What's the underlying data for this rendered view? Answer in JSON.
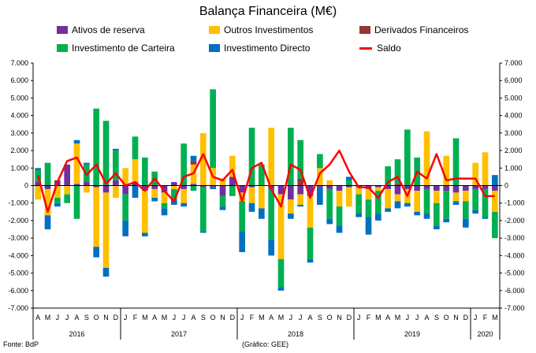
{
  "chart_data": {
    "type": "bar",
    "title": "Balança Financeira (M€)",
    "xlabel": "",
    "ylabel": "",
    "ylim": [
      -7000,
      7000
    ],
    "y_ticks": [
      "-7.000",
      "-6.000",
      "-5.000",
      "-4.000",
      "-3.000",
      "-2.000",
      "-1.000",
      "0",
      "1.000",
      "2.000",
      "3.000",
      "4.000",
      "5.000",
      "6.000",
      "7.000"
    ],
    "stacked": true,
    "grid": false,
    "legend_position": "top",
    "months": [
      "A",
      "M",
      "J",
      "J",
      "A",
      "S",
      "O",
      "N",
      "D",
      "J",
      "F",
      "M",
      "A",
      "M",
      "J",
      "J",
      "A",
      "S",
      "O",
      "N",
      "D",
      "J",
      "F",
      "M",
      "A",
      "M",
      "J",
      "J",
      "A",
      "S",
      "O",
      "N",
      "D",
      "J",
      "F",
      "M",
      "A",
      "M",
      "J",
      "J",
      "A",
      "S",
      "O",
      "N",
      "D",
      "J",
      "F",
      "M"
    ],
    "years": [
      {
        "label": "2016",
        "start": 0,
        "count": 9
      },
      {
        "label": "2017",
        "start": 9,
        "count": 12
      },
      {
        "label": "2018",
        "start": 21,
        "count": 12
      },
      {
        "label": "2019",
        "start": 33,
        "count": 12
      },
      {
        "label": "2020",
        "start": 45,
        "count": 3
      }
    ],
    "series": [
      {
        "name": "Ativos de reserva",
        "color": "#7030a0",
        "values": [
          200,
          -200,
          300,
          1200,
          100,
          200,
          -100,
          -400,
          300,
          -500,
          200,
          -300,
          -200,
          -400,
          200,
          -200,
          100,
          -100,
          -100,
          -600,
          500,
          -400,
          -100,
          0,
          -200,
          -500,
          -800,
          -500,
          -600,
          -100,
          -200,
          -300,
          -100,
          -100,
          -200,
          -100,
          -200,
          -500,
          -200,
          -300,
          -200,
          -300,
          -300,
          -400,
          -300,
          -200,
          -200,
          -300
        ]
      },
      {
        "name": "Outros Investimentos",
        "color": "#ffc000",
        "values": [
          -800,
          -1500,
          -700,
          -500,
          2300,
          -400,
          -3400,
          -4300,
          -700,
          1000,
          1300,
          -2400,
          -500,
          -600,
          -200,
          -800,
          1100,
          3000,
          1000,
          400,
          1200,
          -500,
          -900,
          -1300,
          3300,
          -3700,
          -800,
          -600,
          -1800,
          1000,
          300,
          -900,
          -1100,
          -400,
          -600,
          -200,
          -1100,
          -400,
          -800,
          -1200,
          3100,
          -700,
          1700,
          -500,
          -600,
          1300,
          1900,
          -1200
        ]
      },
      {
        "name": "Derivados Financeiros",
        "color": "#943634",
        "values": [
          0,
          0,
          0,
          0,
          0,
          0,
          0,
          0,
          0,
          0,
          0,
          0,
          0,
          0,
          0,
          0,
          200,
          0,
          0,
          0,
          0,
          0,
          0,
          0,
          0,
          0,
          0,
          400,
          0,
          0,
          0,
          0,
          0,
          0,
          0,
          0,
          0,
          100,
          0,
          0,
          0,
          0,
          0,
          0,
          0,
          0,
          0,
          0
        ]
      },
      {
        "name": "Investimento de Carteira",
        "color": "#00b050",
        "values": [
          700,
          1300,
          -300,
          -500,
          -1900,
          1000,
          4400,
          3700,
          1700,
          -1500,
          1300,
          1600,
          800,
          -300,
          -600,
          2400,
          -300,
          -2500,
          4500,
          -600,
          -600,
          -1700,
          3300,
          1200,
          -2900,
          -1600,
          3300,
          2200,
          -1800,
          800,
          -1700,
          -1100,
          300,
          -1100,
          -1000,
          -1300,
          1100,
          1400,
          3200,
          1600,
          -1400,
          -1300,
          -1600,
          2700,
          -1000,
          -1200,
          -1600,
          -1500
        ]
      },
      {
        "name": "Investimento Directo",
        "color": "#0070c0",
        "values": [
          100,
          -800,
          -200,
          0,
          200,
          100,
          -600,
          -500,
          100,
          -900,
          -700,
          -200,
          -200,
          -400,
          -300,
          -200,
          300,
          -100,
          -100,
          -200,
          0,
          -1200,
          -500,
          -600,
          -900,
          -200,
          -300,
          -100,
          -200,
          -1000,
          -300,
          -400,
          200,
          -200,
          -1000,
          -400,
          -200,
          -400,
          -200,
          -200,
          -300,
          -200,
          -200,
          -200,
          -500,
          -200,
          -100,
          600
        ]
      }
    ],
    "line_series": {
      "name": "Saldo",
      "color": "#ff0000",
      "values": [
        600,
        -1500,
        200,
        1400,
        1600,
        600,
        1200,
        100,
        700,
        0,
        200,
        -300,
        400,
        -300,
        -900,
        500,
        700,
        1800,
        500,
        300,
        900,
        -900,
        1000,
        1300,
        -200,
        -1200,
        1200,
        900,
        -700,
        700,
        1200,
        2000,
        800,
        -100,
        -100,
        -700,
        200,
        500,
        -600,
        800,
        400,
        1800,
        300,
        400,
        400,
        400,
        -600,
        -600
      ]
    }
  },
  "footer": {
    "source": "Fonte: BdP",
    "credit": "(Gráfico: GEE)"
  }
}
